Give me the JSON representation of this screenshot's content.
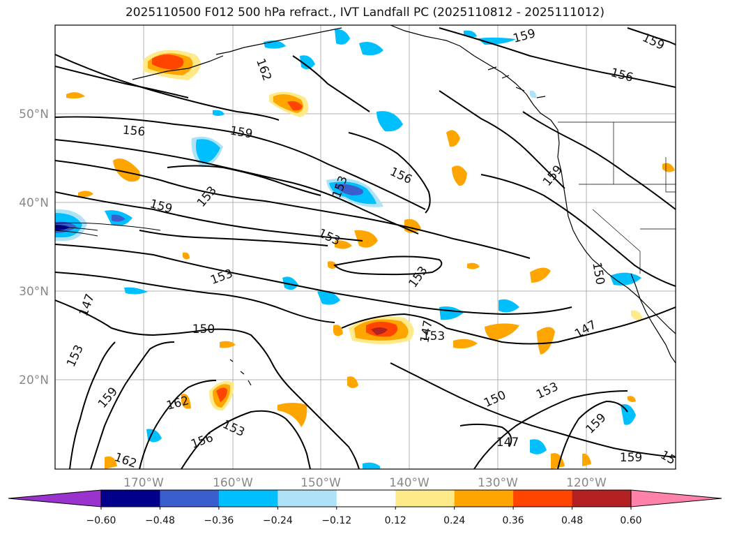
{
  "title": "2025110500 F012 500 hPa refract., IVT Landfall PC (2025110812 - 2025111012)",
  "lat_labels": [
    "50°N",
    "40°N",
    "30°N",
    "20°N"
  ],
  "lon_labels": [
    "170°W",
    "160°W",
    "150°W",
    "140°W",
    "130°W",
    "120°W"
  ],
  "colorbar": {
    "ticks": [
      "−0.60",
      "−0.48",
      "−0.36",
      "−0.24",
      "−0.12",
      "0.12",
      "0.24",
      "0.36",
      "0.48",
      "0.60"
    ],
    "colors": [
      "#9a32cd",
      "#00008b",
      "#3a5fcd",
      "#00bfff",
      "#aee3f7",
      "#ffffff",
      "#ffea8a",
      "#ffa500",
      "#ff4500",
      "#b22222",
      "#ff82ab"
    ]
  },
  "contour_labels": [
    "159",
    "159",
    "156",
    "162",
    "156",
    "159",
    "156",
    "153",
    "153",
    "159",
    "159",
    "153",
    "153",
    "153",
    "150",
    "147",
    "153",
    "153",
    "147",
    "150",
    "147",
    "150",
    "153",
    "159",
    "162",
    "162",
    "153",
    "156",
    "147",
    "159",
    "159",
    "15"
  ]
}
